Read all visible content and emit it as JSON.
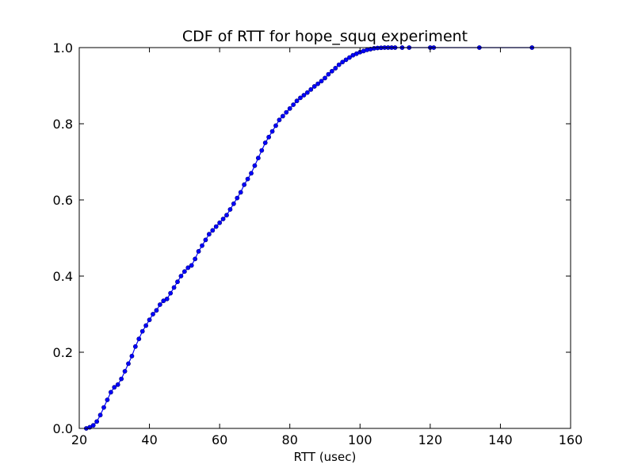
{
  "chart_data": {
    "type": "line",
    "title": "CDF of RTT for hope_squq experiment",
    "xlabel": "RTT (usec)",
    "ylabel": "",
    "xlim": [
      20,
      160
    ],
    "ylim": [
      0.0,
      1.0
    ],
    "xticks": [
      "20",
      "40",
      "60",
      "80",
      "100",
      "120",
      "140",
      "160"
    ],
    "yticks": [
      "0.0",
      "0.2",
      "0.4",
      "0.6",
      "0.8",
      "1.0"
    ],
    "grid": false,
    "legend": "none",
    "series": [
      {
        "color": "#0000ff",
        "marker": "circle",
        "x": [
          22,
          23,
          24,
          25,
          26,
          27,
          28,
          29,
          30,
          31,
          32,
          33,
          34,
          35,
          36,
          37,
          38,
          39,
          40,
          41,
          42,
          43,
          44,
          45,
          46,
          47,
          48,
          49,
          50,
          51,
          52,
          53,
          54,
          55,
          56,
          57,
          58,
          59,
          60,
          61,
          62,
          63,
          64,
          65,
          66,
          67,
          68,
          69,
          70,
          71,
          72,
          73,
          74,
          75,
          76,
          77,
          78,
          79,
          80,
          81,
          82,
          83,
          84,
          85,
          86,
          87,
          88,
          89,
          90,
          91,
          92,
          93,
          94,
          95,
          96,
          97,
          98,
          99,
          100,
          101,
          102,
          103,
          104,
          105,
          106,
          107,
          108,
          109,
          110,
          112,
          114,
          120,
          121,
          134,
          149
        ],
        "y": [
          0.0,
          0.003,
          0.008,
          0.018,
          0.035,
          0.055,
          0.075,
          0.095,
          0.108,
          0.115,
          0.13,
          0.15,
          0.17,
          0.19,
          0.215,
          0.235,
          0.255,
          0.27,
          0.285,
          0.3,
          0.31,
          0.325,
          0.335,
          0.34,
          0.355,
          0.37,
          0.385,
          0.4,
          0.412,
          0.422,
          0.428,
          0.445,
          0.465,
          0.48,
          0.495,
          0.51,
          0.52,
          0.53,
          0.54,
          0.55,
          0.56,
          0.575,
          0.59,
          0.605,
          0.62,
          0.64,
          0.655,
          0.67,
          0.69,
          0.71,
          0.73,
          0.75,
          0.765,
          0.78,
          0.795,
          0.81,
          0.82,
          0.83,
          0.84,
          0.85,
          0.86,
          0.868,
          0.875,
          0.882,
          0.89,
          0.898,
          0.905,
          0.912,
          0.92,
          0.93,
          0.938,
          0.946,
          0.955,
          0.962,
          0.968,
          0.974,
          0.98,
          0.984,
          0.988,
          0.991,
          0.994,
          0.996,
          0.998,
          0.999,
          0.9995,
          1.0,
          1.0,
          1.0,
          1.0,
          1.0,
          1.0,
          1.0,
          1.0,
          1.0,
          1.0
        ]
      }
    ]
  }
}
